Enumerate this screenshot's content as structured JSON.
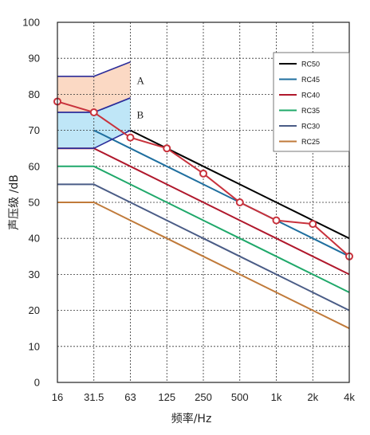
{
  "chart_data": {
    "type": "line",
    "xlabel": "频率/Hz",
    "ylabel": "声压级 /dB",
    "categories": [
      "16",
      "31.5",
      "63",
      "125",
      "250",
      "500",
      "1k",
      "2k",
      "4k"
    ],
    "ylim": [
      0,
      100
    ],
    "yticks": [
      "0",
      "10",
      "20",
      "30",
      "40",
      "50",
      "60",
      "70",
      "80",
      "90",
      "100"
    ],
    "grid": true,
    "legend_position": "top-right",
    "series": [
      {
        "name": "RC50",
        "color": "#000000",
        "values": [
          null,
          null,
          70,
          65,
          60,
          55,
          50,
          45,
          40
        ]
      },
      {
        "name": "RC45",
        "color": "#1f6f9f",
        "values": [
          null,
          70,
          65,
          60,
          55,
          50,
          45,
          40,
          35
        ]
      },
      {
        "name": "RC40",
        "color": "#b0182c",
        "values": [
          65,
          65,
          60,
          55,
          50,
          45,
          40,
          35,
          30
        ]
      },
      {
        "name": "RC35",
        "color": "#1fa86a",
        "values": [
          60,
          60,
          55,
          50,
          45,
          40,
          35,
          30,
          25
        ]
      },
      {
        "name": "RC30",
        "color": "#4a5c86",
        "values": [
          55,
          55,
          50,
          45,
          40,
          35,
          30,
          25,
          20
        ]
      },
      {
        "name": "RC25",
        "color": "#c07a3a",
        "values": [
          50,
          50,
          45,
          40,
          35,
          30,
          25,
          20,
          15
        ]
      }
    ],
    "measured": {
      "color": "#c8323c",
      "marker_fill": "#ffffff",
      "values": [
        78,
        75,
        68,
        65,
        58,
        50,
        45,
        44,
        35
      ]
    },
    "zones": [
      {
        "label": "A",
        "fill": "#fbd9c4",
        "border_color": "#2b2d9a",
        "top": [
          [
            0,
            85
          ],
          [
            1,
            85
          ],
          [
            2,
            89
          ]
        ],
        "bottom": [
          [
            0,
            75
          ],
          [
            1,
            75
          ],
          [
            2,
            79
          ]
        ]
      },
      {
        "label": "B",
        "fill": "#bfe6f7",
        "border_color": "#2b2d9a",
        "top": [
          [
            0,
            75
          ],
          [
            1,
            75
          ],
          [
            2,
            79
          ]
        ],
        "bottom": [
          [
            0,
            65
          ],
          [
            1,
            65
          ],
          [
            2,
            70
          ]
        ]
      }
    ]
  }
}
